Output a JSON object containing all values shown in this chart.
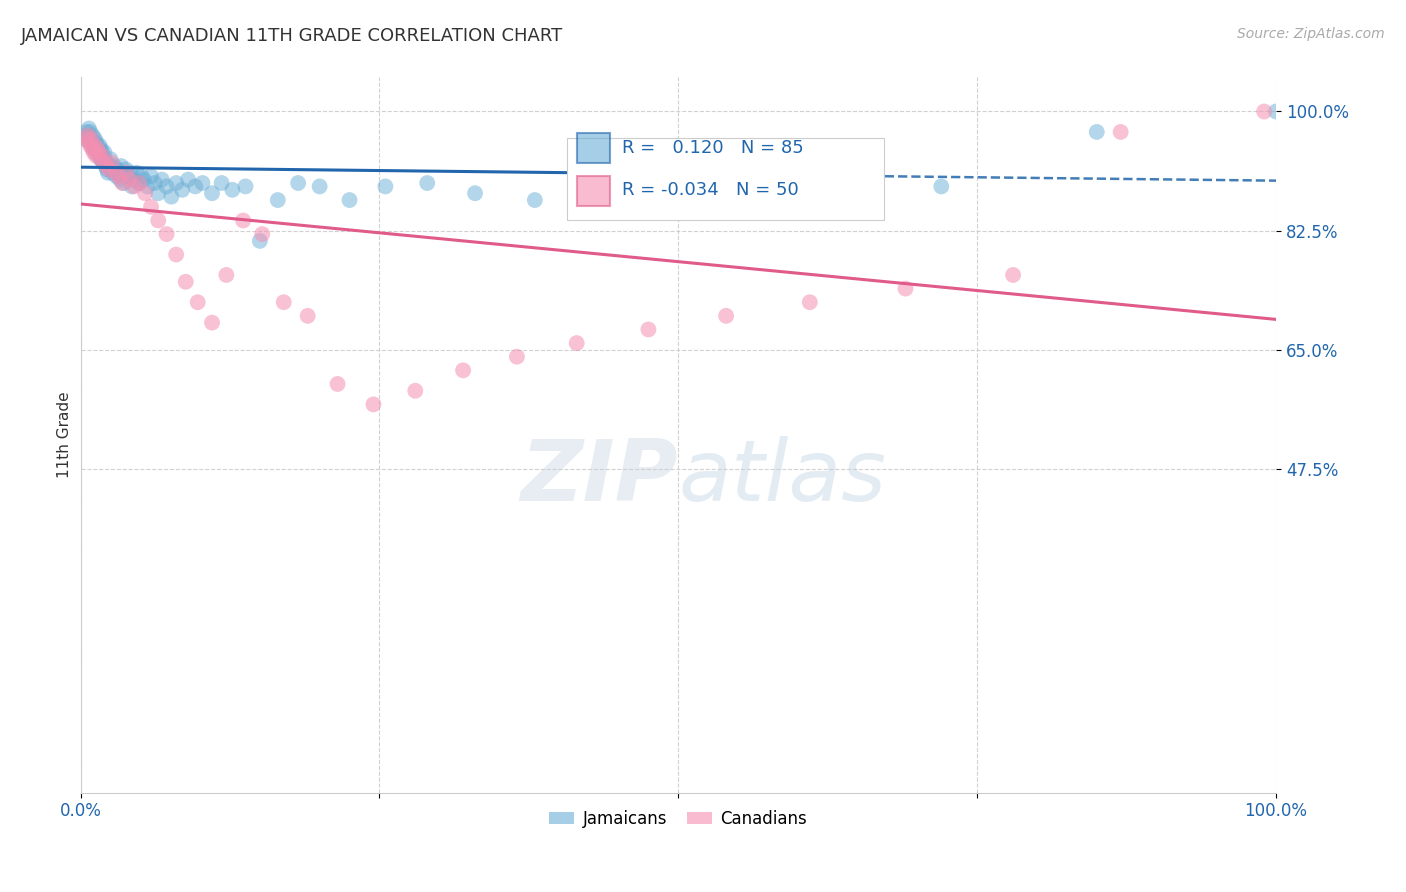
{
  "title": "JAMAICAN VS CANADIAN 11TH GRADE CORRELATION CHART",
  "source": "Source: ZipAtlas.com",
  "ylabel": "11th Grade",
  "xlim": [
    0.0,
    1.0
  ],
  "ylim": [
    0.0,
    1.05
  ],
  "yticks": [
    0.475,
    0.65,
    0.825,
    1.0
  ],
  "ytick_labels": [
    "47.5%",
    "65.0%",
    "82.5%",
    "100.0%"
  ],
  "xtick_labels": [
    "0.0%",
    "100.0%"
  ],
  "r_jamaican": 0.12,
  "n_jamaican": 85,
  "r_canadian": -0.034,
  "n_canadian": 50,
  "jamaican_color": "#6baed6",
  "canadian_color": "#f48fb1",
  "trendline_jamaican_color": "#2166ac",
  "trendline_canadian_color": "#e05a8a",
  "background_color": "#ffffff",
  "jamaican_x": [
    0.004,
    0.005,
    0.006,
    0.007,
    0.008,
    0.008,
    0.009,
    0.01,
    0.01,
    0.011,
    0.011,
    0.012,
    0.012,
    0.013,
    0.013,
    0.014,
    0.014,
    0.015,
    0.015,
    0.016,
    0.016,
    0.017,
    0.017,
    0.018,
    0.018,
    0.019,
    0.02,
    0.02,
    0.021,
    0.022,
    0.022,
    0.023,
    0.024,
    0.025,
    0.026,
    0.027,
    0.028,
    0.03,
    0.031,
    0.032,
    0.033,
    0.034,
    0.035,
    0.036,
    0.037,
    0.038,
    0.04,
    0.042,
    0.043,
    0.045,
    0.047,
    0.049,
    0.051,
    0.053,
    0.056,
    0.059,
    0.062,
    0.065,
    0.068,
    0.072,
    0.076,
    0.08,
    0.085,
    0.09,
    0.096,
    0.102,
    0.11,
    0.118,
    0.127,
    0.138,
    0.15,
    0.165,
    0.182,
    0.2,
    0.225,
    0.255,
    0.29,
    0.33,
    0.38,
    0.44,
    0.51,
    0.6,
    0.72,
    0.85,
    1.0
  ],
  "jamaican_y": [
    0.96,
    0.97,
    0.965,
    0.975,
    0.955,
    0.97,
    0.96,
    0.95,
    0.965,
    0.955,
    0.945,
    0.96,
    0.95,
    0.945,
    0.955,
    0.94,
    0.95,
    0.935,
    0.945,
    0.94,
    0.95,
    0.93,
    0.945,
    0.935,
    0.94,
    0.925,
    0.93,
    0.94,
    0.92,
    0.915,
    0.925,
    0.91,
    0.92,
    0.93,
    0.915,
    0.91,
    0.92,
    0.905,
    0.915,
    0.91,
    0.9,
    0.92,
    0.91,
    0.895,
    0.905,
    0.915,
    0.905,
    0.91,
    0.89,
    0.9,
    0.91,
    0.895,
    0.905,
    0.9,
    0.89,
    0.905,
    0.895,
    0.88,
    0.9,
    0.89,
    0.875,
    0.895,
    0.885,
    0.9,
    0.89,
    0.895,
    0.88,
    0.895,
    0.885,
    0.89,
    0.81,
    0.87,
    0.895,
    0.89,
    0.87,
    0.89,
    0.895,
    0.88,
    0.87,
    0.885,
    0.89,
    0.88,
    0.89,
    0.97,
    1.0
  ],
  "canadian_x": [
    0.005,
    0.006,
    0.007,
    0.008,
    0.009,
    0.01,
    0.011,
    0.012,
    0.013,
    0.014,
    0.015,
    0.017,
    0.018,
    0.02,
    0.022,
    0.024,
    0.026,
    0.029,
    0.032,
    0.035,
    0.038,
    0.041,
    0.045,
    0.049,
    0.054,
    0.059,
    0.065,
    0.072,
    0.08,
    0.088,
    0.098,
    0.11,
    0.122,
    0.136,
    0.152,
    0.17,
    0.19,
    0.215,
    0.245,
    0.28,
    0.32,
    0.365,
    0.415,
    0.475,
    0.54,
    0.61,
    0.69,
    0.78,
    0.87,
    0.99
  ],
  "canadian_y": [
    0.96,
    0.965,
    0.955,
    0.95,
    0.96,
    0.945,
    0.94,
    0.95,
    0.935,
    0.945,
    0.94,
    0.93,
    0.935,
    0.925,
    0.92,
    0.915,
    0.925,
    0.91,
    0.905,
    0.895,
    0.91,
    0.9,
    0.89,
    0.895,
    0.88,
    0.86,
    0.84,
    0.82,
    0.79,
    0.75,
    0.72,
    0.69,
    0.76,
    0.84,
    0.82,
    0.72,
    0.7,
    0.6,
    0.57,
    0.59,
    0.62,
    0.64,
    0.66,
    0.68,
    0.7,
    0.72,
    0.74,
    0.76,
    0.97,
    1.0
  ]
}
